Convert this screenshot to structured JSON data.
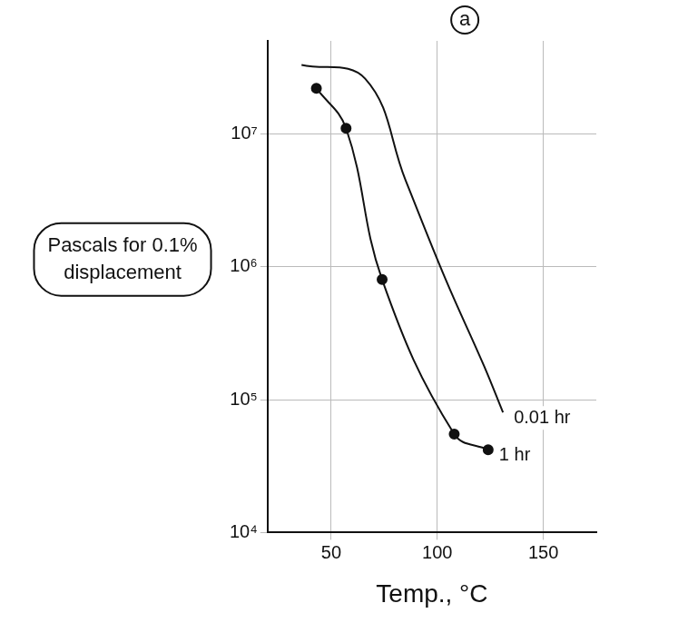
{
  "chart_data": {
    "type": "line",
    "x_label": "Temp., °C",
    "y_label": "Pascals for 0.1% displacement",
    "annotations": [
      "a"
    ],
    "log": "y",
    "grid": true,
    "xlim": [
      20,
      175
    ],
    "xticks": [
      50,
      100,
      150
    ],
    "ylim": [
      10000,
      50000000
    ],
    "yticks": [
      {
        "value": 10000,
        "label": "10⁴"
      },
      {
        "value": 100000,
        "label": "10⁵"
      },
      {
        "value": 1000000,
        "label": "10⁶"
      },
      {
        "value": 10000000,
        "label": "10⁷"
      }
    ],
    "series": [
      {
        "name": "0.01 hr",
        "color": "#111111",
        "marker": "none",
        "line_style": "solid",
        "x": [
          36,
          66,
          85,
          104,
          122,
          131
        ],
        "values": [
          33000000,
          26000000,
          4500000,
          800000,
          180000,
          80000
        ]
      },
      {
        "name": "1 hr",
        "color": "#111111",
        "marker": "circle",
        "line_style": "solid",
        "x": [
          43,
          57,
          74,
          108,
          124
        ],
        "values": [
          22000000,
          11000000,
          800000,
          55000,
          42000
        ]
      }
    ]
  }
}
